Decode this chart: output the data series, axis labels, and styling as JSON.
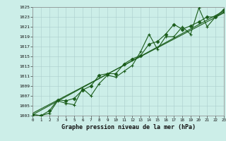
{
  "title": "Graphe pression niveau de la mer (hPa)",
  "bg_color": "#cceee8",
  "grid_color": "#aacccc",
  "line_color": "#1a5c1a",
  "x_min": 0,
  "x_max": 23,
  "y_min": 1003,
  "y_max": 1025,
  "y_ticks": [
    1003,
    1005,
    1007,
    1009,
    1011,
    1013,
    1015,
    1017,
    1019,
    1021,
    1023,
    1025
  ],
  "x_ticks": [
    0,
    1,
    2,
    3,
    4,
    5,
    6,
    7,
    8,
    9,
    10,
    11,
    12,
    13,
    14,
    15,
    16,
    17,
    18,
    19,
    20,
    21,
    22,
    23
  ],
  "series1_x": [
    0,
    1,
    2,
    3,
    4,
    5,
    6,
    7,
    8,
    9,
    10,
    11,
    12,
    13,
    14,
    15,
    16,
    17,
    18,
    19,
    20,
    21,
    22,
    23
  ],
  "series1_y": [
    1003.2,
    1003.0,
    1003.5,
    1006.0,
    1005.5,
    1005.2,
    1008.5,
    1007.0,
    1009.5,
    1011.2,
    1010.8,
    1012.0,
    1013.2,
    1016.0,
    1019.5,
    1016.5,
    1019.0,
    1019.0,
    1021.0,
    1019.5,
    1024.8,
    1021.0,
    1023.0,
    1024.0
  ],
  "series2_x": [
    0,
    1,
    2,
    3,
    4,
    5,
    6,
    7,
    8,
    9,
    10,
    11,
    12,
    13,
    14,
    15,
    16,
    17,
    18,
    19,
    20,
    21,
    22,
    23
  ],
  "series2_y": [
    1003.2,
    1003.0,
    1004.0,
    1006.2,
    1006.0,
    1006.5,
    1008.2,
    1009.0,
    1011.2,
    1011.5,
    1011.5,
    1013.5,
    1014.5,
    1015.2,
    1017.5,
    1018.0,
    1019.5,
    1021.5,
    1020.5,
    1021.2,
    1022.0,
    1023.0,
    1023.0,
    1024.5
  ],
  "trend1_x": [
    0,
    23
  ],
  "trend1_y": [
    1003.2,
    1024.2
  ],
  "trend2_x": [
    0,
    23
  ],
  "trend2_y": [
    1003.5,
    1023.8
  ]
}
